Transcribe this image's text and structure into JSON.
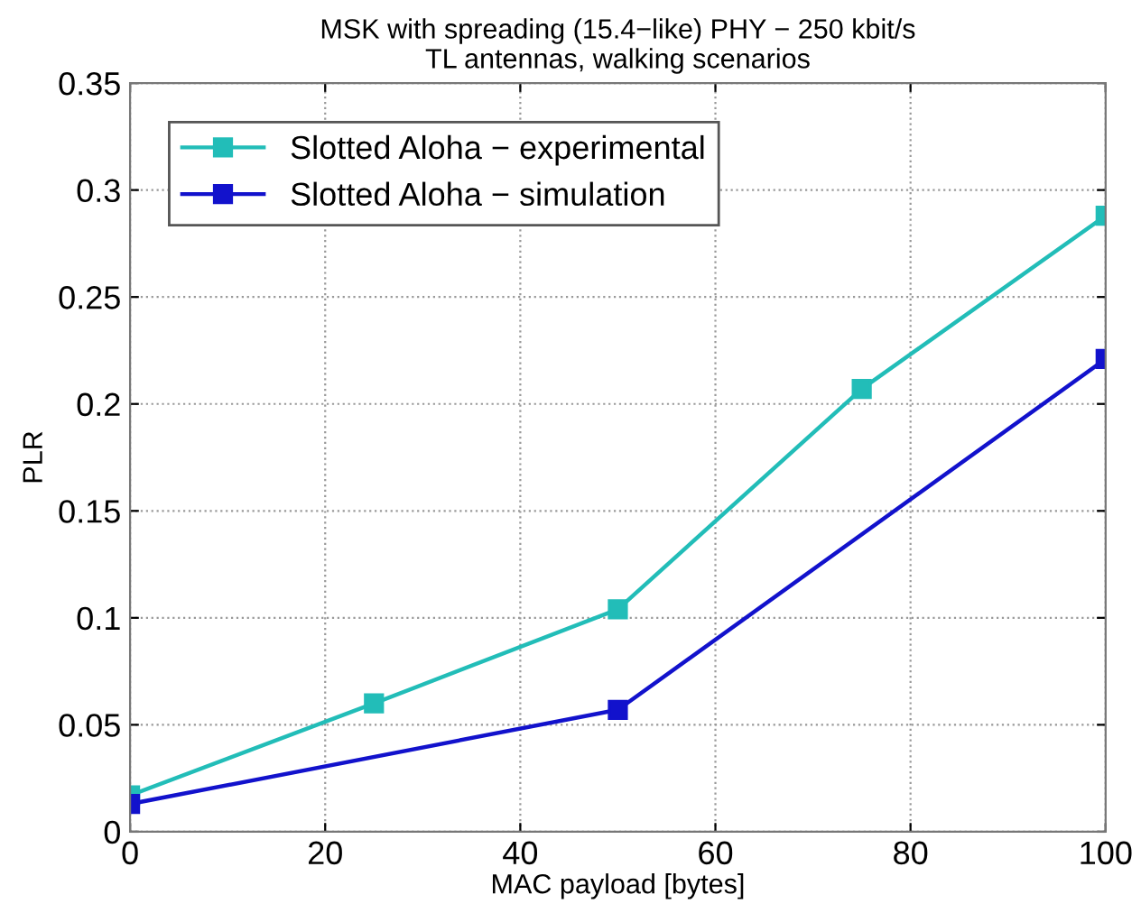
{
  "chart_data": {
    "type": "line",
    "title": "MSK with spreading (15.4−like) PHY − 250 kbit/s\nTL antennas, walking scenarios",
    "xlabel": "MAC payload [bytes]",
    "ylabel": "PLR",
    "series": [
      {
        "name": "Slotted Aloha − experimental",
        "color": "#22bdb8",
        "x": [
          0,
          25,
          50,
          75,
          100
        ],
        "values": [
          0.017,
          0.06,
          0.104,
          0.207,
          0.288
        ]
      },
      {
        "name": "Slotted Aloha − simulation",
        "color": "#1212cc",
        "x": [
          0,
          50,
          100
        ],
        "values": [
          0.013,
          0.057,
          0.221
        ]
      }
    ],
    "xlim": [
      0,
      100
    ],
    "xticks": [
      0,
      20,
      40,
      60,
      80,
      100
    ],
    "ylim": [
      0,
      0.35
    ],
    "yticks": [
      0,
      0.05,
      0.1,
      0.15,
      0.2,
      0.25,
      0.3,
      0.35
    ],
    "grid": true,
    "legend": "top left",
    "marker": "square",
    "line_style": "solid"
  }
}
